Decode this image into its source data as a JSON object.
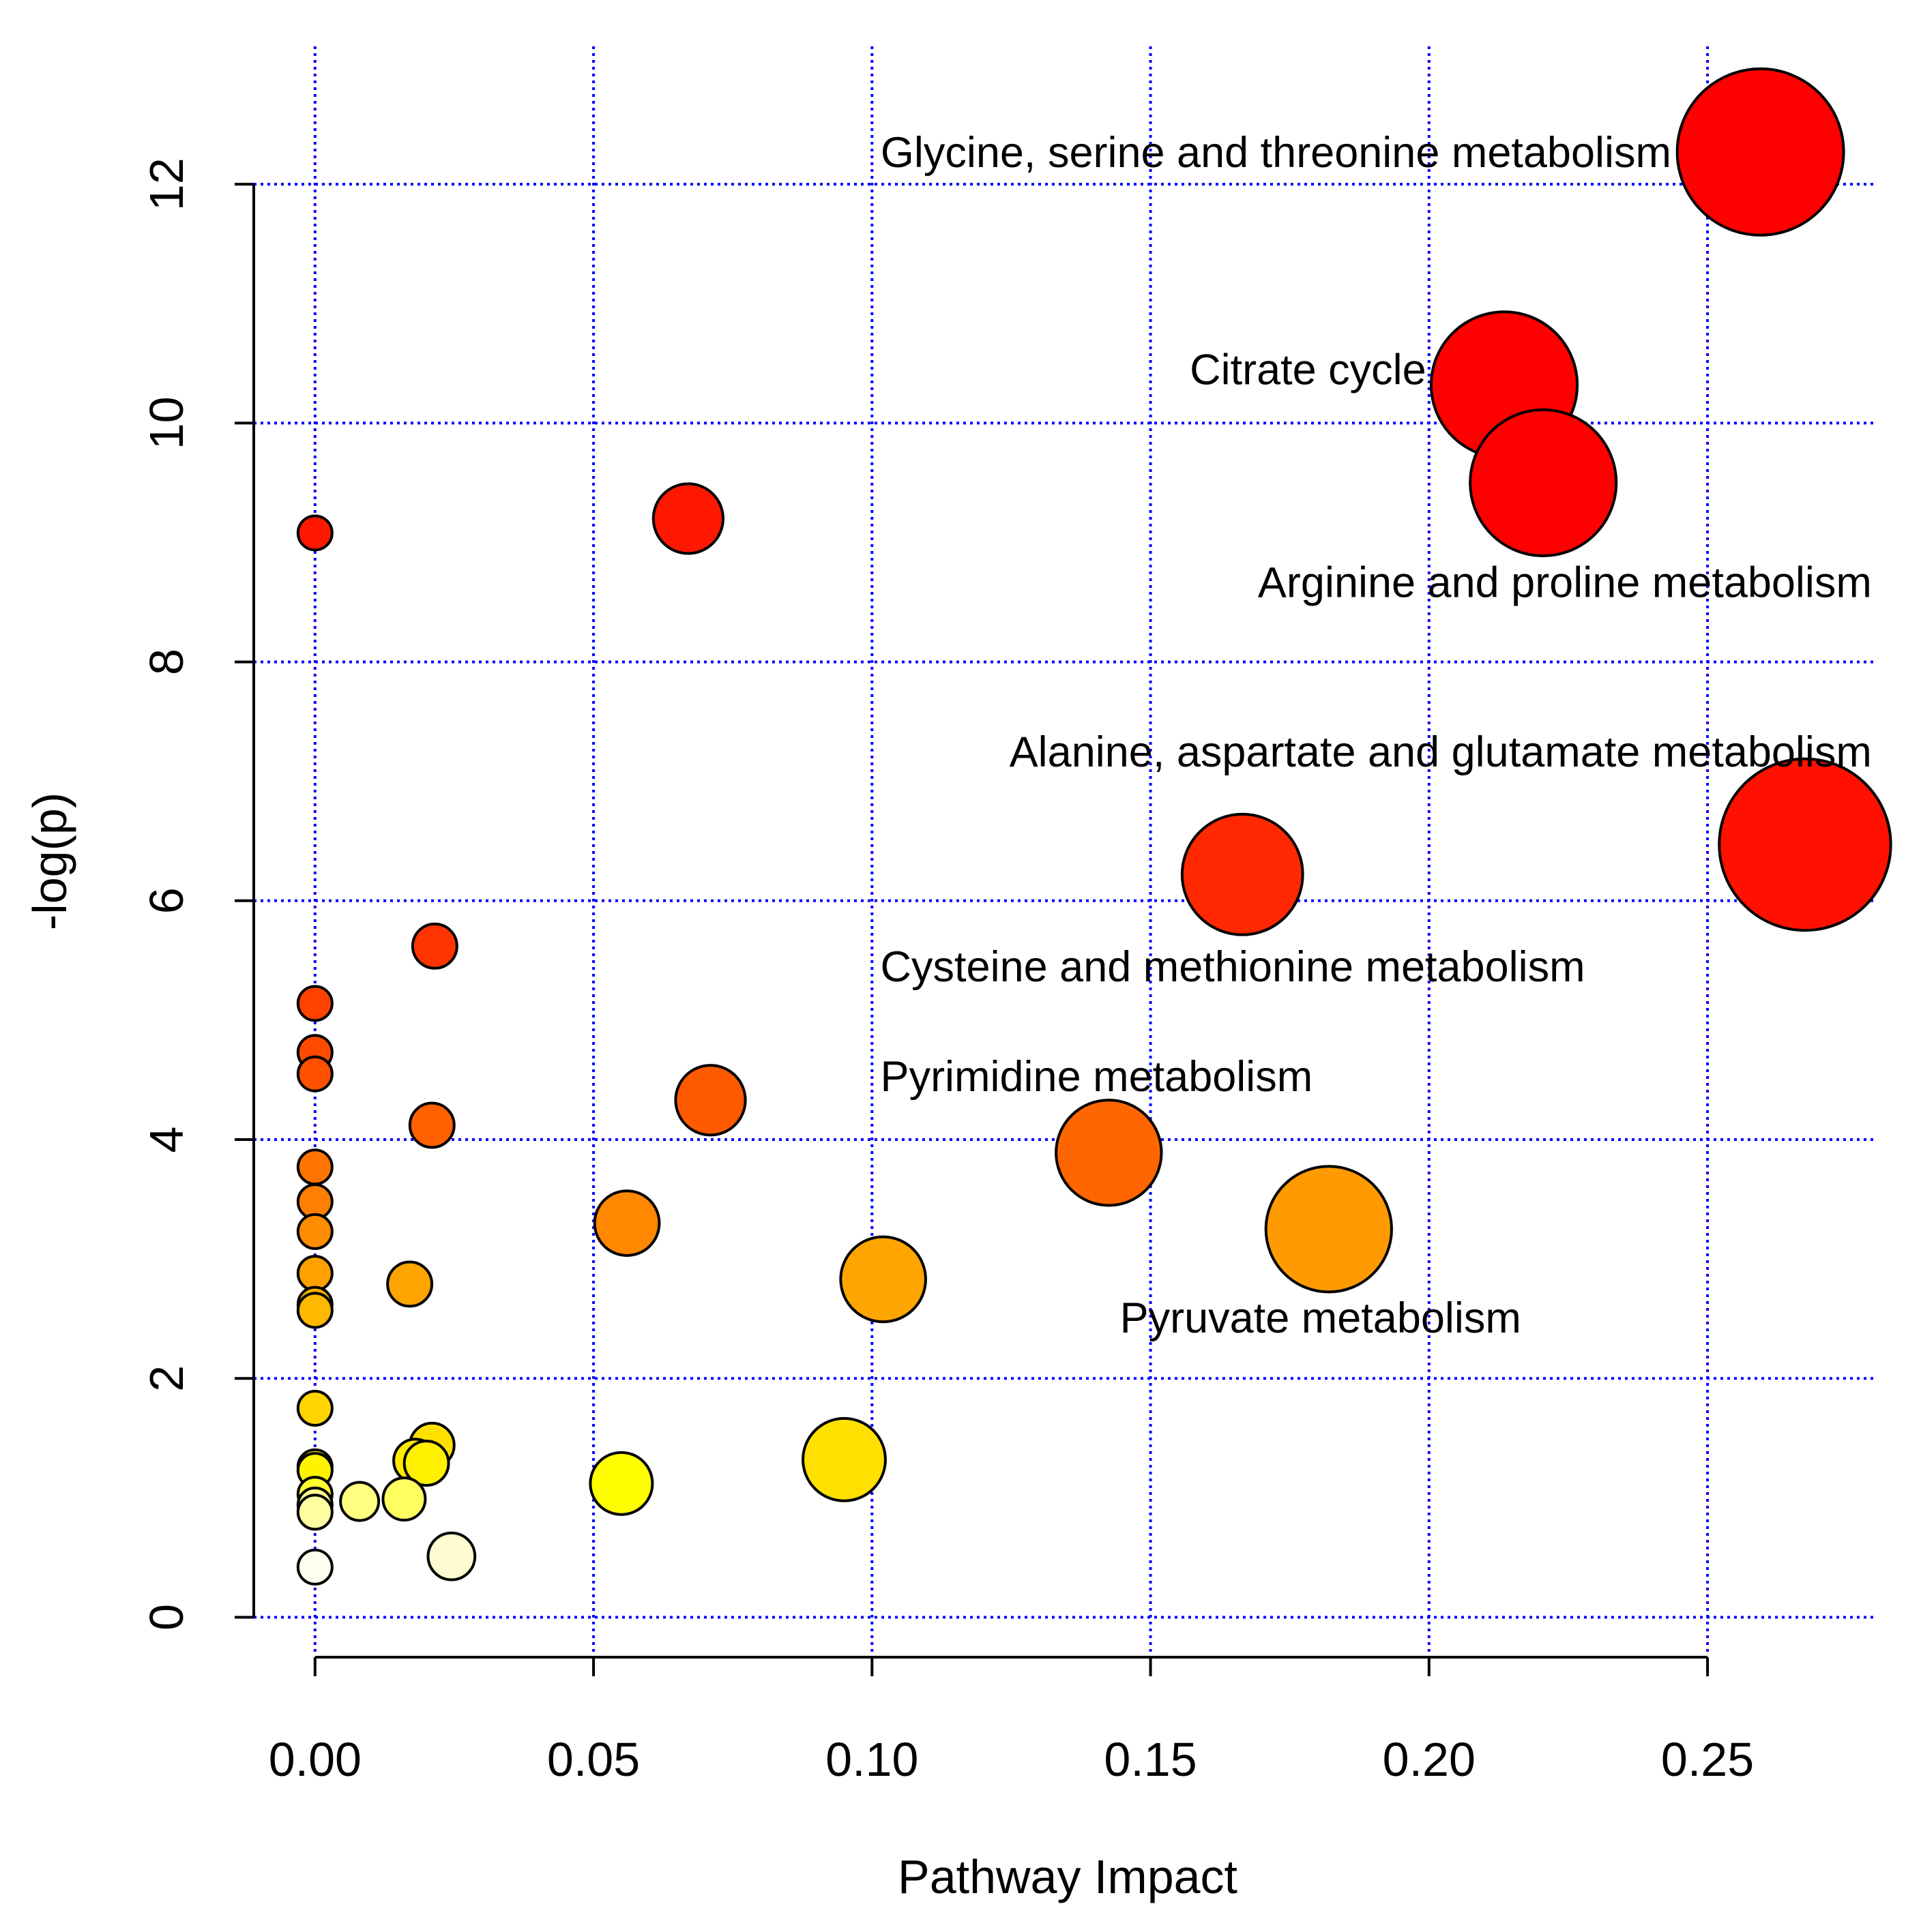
{
  "chart_data": {
    "type": "scatter",
    "title": "",
    "xlabel": "Pathway Impact",
    "ylabel": "-log(p)",
    "xlim": [
      -0.011,
      0.28
    ],
    "ylim": [
      -0.3,
      13.2
    ],
    "xticks": [
      0.0,
      0.05,
      0.1,
      0.15,
      0.2,
      0.25
    ],
    "xtick_labels": [
      "0.00",
      "0.05",
      "0.10",
      "0.15",
      "0.20",
      "0.25"
    ],
    "yticks": [
      0,
      2,
      4,
      6,
      8,
      10,
      12
    ],
    "ytick_labels": [
      "0",
      "2",
      "4",
      "6",
      "8",
      "10",
      "12"
    ],
    "grid": true,
    "grid_color": "#0000ff",
    "point_stroke": "#000000",
    "color_scale": [
      "#fffde0",
      "#ffff00",
      "#ffa500",
      "#ff0000"
    ],
    "size_encodes": "Pathway Impact",
    "color_encodes": "-log(p)",
    "points": [
      {
        "x": 0.2595,
        "y": 12.27,
        "size": 0.26,
        "color": "#ff0000"
      },
      {
        "x": 0.2135,
        "y": 10.32,
        "size": 0.22,
        "color": "#ff0000"
      },
      {
        "x": 0.2205,
        "y": 9.5,
        "size": 0.22,
        "color": "#ff0000"
      },
      {
        "x": 0.067,
        "y": 9.2,
        "size": 0.07,
        "color": "#ff1800"
      },
      {
        "x": 0.0,
        "y": 9.08,
        "size": 0.0,
        "color": "#ff1800"
      },
      {
        "x": 0.2675,
        "y": 6.47,
        "size": 0.27,
        "color": "#ff1000"
      },
      {
        "x": 0.1665,
        "y": 6.22,
        "size": 0.17,
        "color": "#ff2800"
      },
      {
        "x": 0.0215,
        "y": 5.62,
        "size": 0.02,
        "color": "#ff3400"
      },
      {
        "x": 0.0,
        "y": 5.14,
        "size": 0.0,
        "color": "#ff4200"
      },
      {
        "x": 0.0,
        "y": 4.73,
        "size": 0.0,
        "color": "#ff4a00"
      },
      {
        "x": 0.0,
        "y": 4.55,
        "size": 0.0,
        "color": "#ff5000"
      },
      {
        "x": 0.071,
        "y": 4.33,
        "size": 0.07,
        "color": "#ff5a00"
      },
      {
        "x": 0.021,
        "y": 4.12,
        "size": 0.02,
        "color": "#ff6000"
      },
      {
        "x": 0.1425,
        "y": 3.89,
        "size": 0.14,
        "color": "#ff6600"
      },
      {
        "x": 0.0,
        "y": 3.77,
        "size": 0.0,
        "color": "#ff7400"
      },
      {
        "x": 0.0,
        "y": 3.48,
        "size": 0.0,
        "color": "#ff8000"
      },
      {
        "x": 0.056,
        "y": 3.3,
        "size": 0.06,
        "color": "#ff8800"
      },
      {
        "x": 0.182,
        "y": 3.25,
        "size": 0.18,
        "color": "#ff9a00"
      },
      {
        "x": 0.0,
        "y": 3.23,
        "size": 0.0,
        "color": "#ff8c00"
      },
      {
        "x": 0.0,
        "y": 2.88,
        "size": 0.0,
        "color": "#ffa000"
      },
      {
        "x": 0.102,
        "y": 2.83,
        "size": 0.1,
        "color": "#ffa500"
      },
      {
        "x": 0.017,
        "y": 2.79,
        "size": 0.02,
        "color": "#ffa500"
      },
      {
        "x": 0.0,
        "y": 2.62,
        "size": 0.0,
        "color": "#ffb000"
      },
      {
        "x": 0.0,
        "y": 2.57,
        "size": 0.0,
        "color": "#ffb800"
      },
      {
        "x": 0.0,
        "y": 1.75,
        "size": 0.0,
        "color": "#ffd400"
      },
      {
        "x": 0.021,
        "y": 1.44,
        "size": 0.02,
        "color": "#ffe000"
      },
      {
        "x": 0.095,
        "y": 1.32,
        "size": 0.095,
        "color": "#ffe000"
      },
      {
        "x": 0.018,
        "y": 1.31,
        "size": 0.018,
        "color": "#ffea00"
      },
      {
        "x": 0.02,
        "y": 1.29,
        "size": 0.02,
        "color": "#fff000"
      },
      {
        "x": 0.0,
        "y": 1.26,
        "size": 0.0,
        "color": "#ffee00"
      },
      {
        "x": 0.0,
        "y": 1.23,
        "size": 0.0,
        "color": "#fff400"
      },
      {
        "x": 0.055,
        "y": 1.12,
        "size": 0.055,
        "color": "#ffff00"
      },
      {
        "x": 0.0,
        "y": 1.03,
        "size": 0.0,
        "color": "#ffff30"
      },
      {
        "x": 0.016,
        "y": 0.99,
        "size": 0.016,
        "color": "#ffff60"
      },
      {
        "x": 0.008,
        "y": 0.97,
        "size": 0.008,
        "color": "#ffff80"
      },
      {
        "x": 0.0,
        "y": 0.94,
        "size": 0.0,
        "color": "#ffff90"
      },
      {
        "x": 0.0,
        "y": 0.88,
        "size": 0.0,
        "color": "#ffffa0"
      },
      {
        "x": 0.0245,
        "y": 0.51,
        "size": 0.025,
        "color": "#fffbd0"
      },
      {
        "x": 0.0,
        "y": 0.42,
        "size": 0.0,
        "color": "#fffff0"
      }
    ],
    "annotations": [
      {
        "text": "Glycine, serine and threonine metabolism",
        "x": 0.2435,
        "y": 12.27,
        "anchor": "end"
      },
      {
        "text": "Citrate cycle",
        "x": 0.1995,
        "y": 10.45,
        "anchor": "end"
      },
      {
        "text": "Arginine and proline metabolism",
        "x": 0.2795,
        "y": 8.67,
        "anchor": "end"
      },
      {
        "text": "Alanine, aspartate and glutamate metabolism",
        "x": 0.2795,
        "y": 7.25,
        "anchor": "end"
      },
      {
        "text": "Cysteine and methionine metabolism",
        "x": 0.1015,
        "y": 5.45,
        "anchor": "start"
      },
      {
        "text": "Pyrimidine metabolism",
        "x": 0.1015,
        "y": 4.53,
        "anchor": "start"
      },
      {
        "text": "Pyruvate metabolism",
        "x": 0.1445,
        "y": 2.51,
        "anchor": "start"
      }
    ]
  }
}
